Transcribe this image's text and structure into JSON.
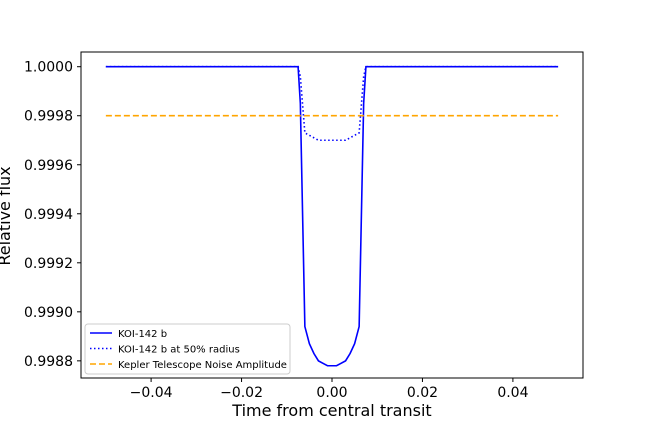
{
  "chart_data": {
    "type": "line",
    "title": "",
    "xlabel": "Time from central transit",
    "ylabel": "Relative flux",
    "xlim": [
      -0.0555,
      0.0555
    ],
    "ylim": [
      0.99873,
      1.00006
    ],
    "x_ticks": [
      -0.04,
      -0.02,
      0.0,
      0.02,
      0.04
    ],
    "x_tick_labels": [
      "−0.04",
      "−0.02",
      "0.00",
      "0.02",
      "0.04"
    ],
    "y_ticks": [
      0.9988,
      0.999,
      0.9992,
      0.9994,
      0.9996,
      0.9998,
      1.0
    ],
    "y_tick_labels": [
      "0.9988",
      "0.9990",
      "0.9992",
      "0.9994",
      "0.9996",
      "0.9998",
      "1.0000"
    ],
    "grid": false,
    "legend_position": "lower-left",
    "series": [
      {
        "name": "KOI-142 b",
        "color": "#0000ff",
        "style": "solid",
        "x": [
          -0.05,
          -0.0075,
          -0.007,
          -0.006,
          -0.005,
          -0.004,
          -0.003,
          -0.002,
          -0.001,
          0.0,
          0.001,
          0.002,
          0.003,
          0.004,
          0.005,
          0.006,
          0.007,
          0.0075,
          0.05
        ],
        "y": [
          1.0,
          1.0,
          0.99985,
          0.99894,
          0.99887,
          0.99883,
          0.9988,
          0.99879,
          0.99878,
          0.99878,
          0.99878,
          0.99879,
          0.9988,
          0.99883,
          0.99887,
          0.99894,
          0.99985,
          1.0,
          1.0
        ]
      },
      {
        "name": "KOI-142 b at 50% radius",
        "color": "#0000ff",
        "style": "dotted",
        "x": [
          -0.05,
          -0.0075,
          -0.007,
          -0.006,
          -0.005,
          -0.004,
          -0.003,
          -0.002,
          -0.001,
          0.0,
          0.001,
          0.002,
          0.003,
          0.004,
          0.005,
          0.006,
          0.007,
          0.0075,
          0.05
        ],
        "y": [
          1.0,
          1.0,
          0.99996,
          0.99973,
          0.99972,
          0.99971,
          0.9997,
          0.9997,
          0.9997,
          0.9997,
          0.9997,
          0.9997,
          0.9997,
          0.99971,
          0.99972,
          0.99973,
          0.99996,
          1.0,
          1.0
        ]
      },
      {
        "name": "Kepler Telescope Noise Amplitude",
        "color": "#ffa500",
        "style": "dashed",
        "x": [
          -0.05,
          0.05
        ],
        "y": [
          0.9998,
          0.9998
        ]
      }
    ]
  }
}
